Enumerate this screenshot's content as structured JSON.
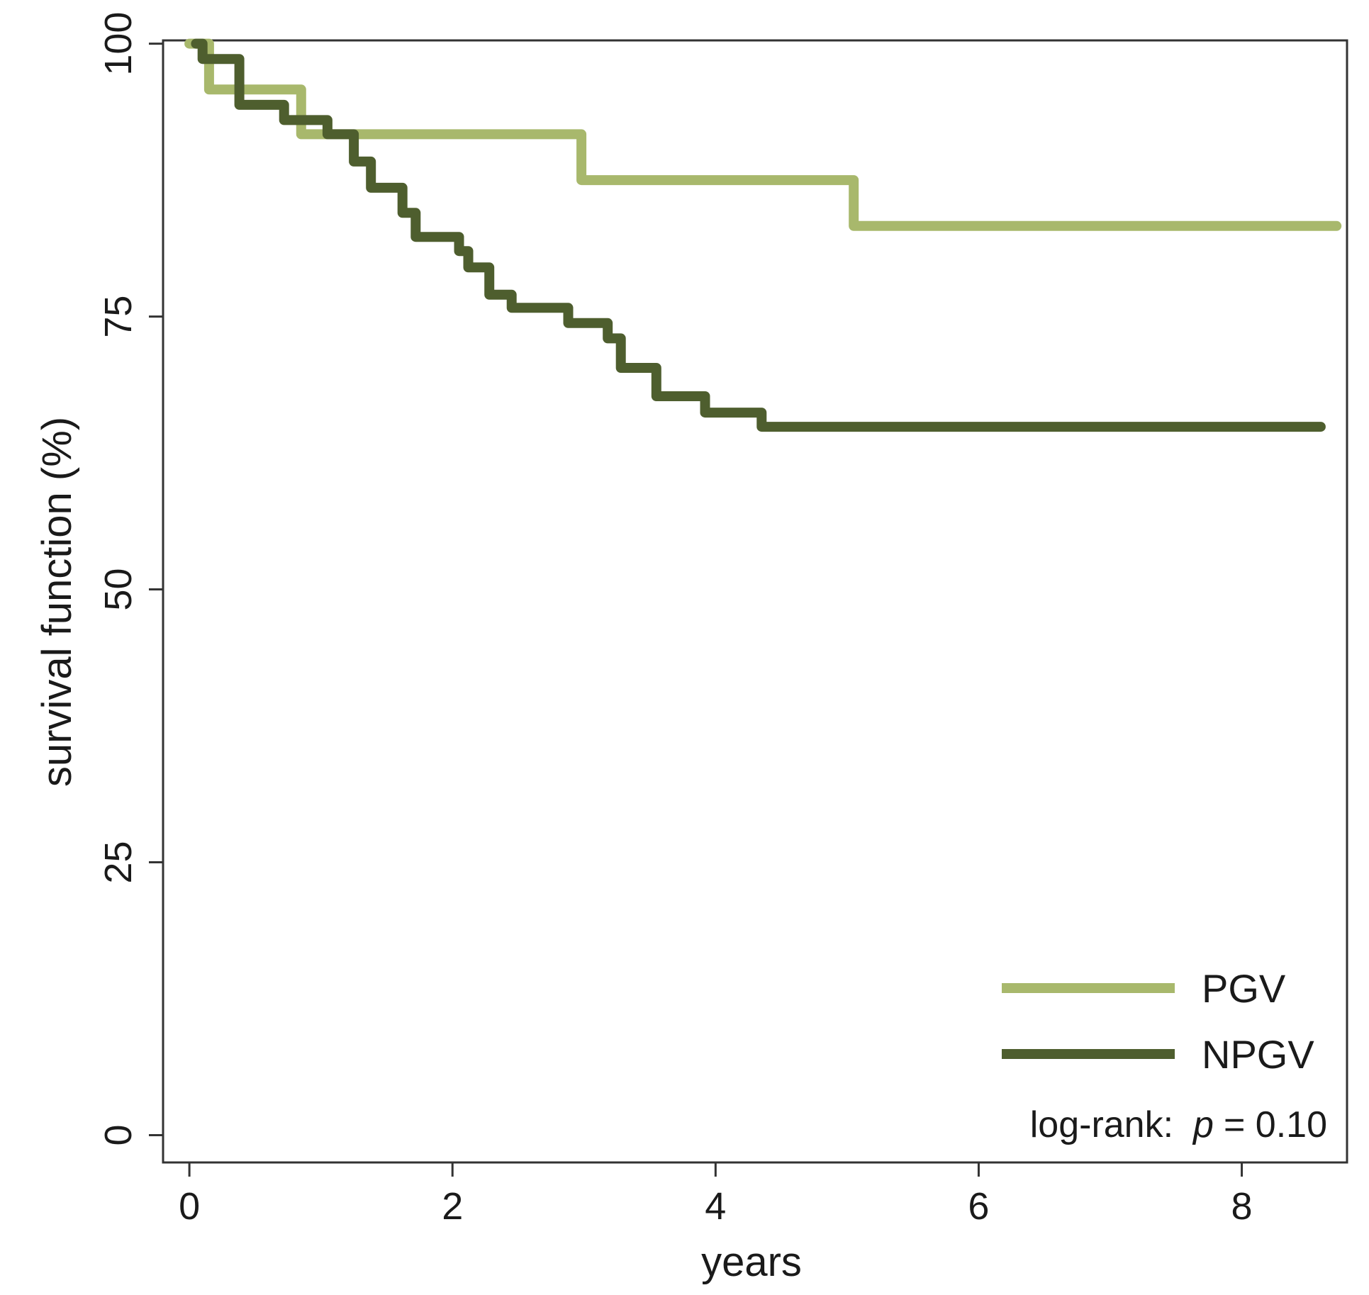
{
  "chart_data": {
    "type": "line",
    "subtype": "kaplan-meier-step",
    "title": "",
    "xlabel": "years",
    "ylabel": "survival function (%)",
    "xlim": [
      -0.2,
      8.8
    ],
    "ylim": [
      -2.5,
      100.3
    ],
    "xticks": [
      0,
      2,
      4,
      6,
      8
    ],
    "yticks": [
      0,
      25,
      50,
      75,
      100
    ],
    "xtick_labels": [
      "0",
      "2",
      "4",
      "6",
      "8"
    ],
    "ytick_labels": [
      "0",
      "25",
      "50",
      "75",
      "100"
    ],
    "grid": false,
    "legend_position": "bottom-right",
    "annotation": {
      "prefix": "log-rank:",
      "italic": "p",
      "suffix": "= 0.10"
    },
    "series": [
      {
        "name": "PGV",
        "color": "#a8b86c",
        "x": [
          0,
          0.15,
          0.15,
          0.85,
          0.85,
          2.98,
          2.98,
          5.05,
          5.05,
          8.72
        ],
        "y": [
          100,
          100,
          95.8,
          95.8,
          91.7,
          91.7,
          87.5,
          87.5,
          83.3,
          83.3
        ]
      },
      {
        "name": "NPGV",
        "color": "#4e5e2e",
        "x": [
          0.05,
          0.1,
          0.1,
          0.38,
          0.38,
          0.72,
          0.72,
          1.05,
          1.05,
          1.25,
          1.25,
          1.38,
          1.38,
          1.62,
          1.62,
          1.72,
          1.72,
          2.05,
          2.05,
          2.12,
          2.12,
          2.28,
          2.28,
          2.45,
          2.45,
          2.88,
          2.88,
          3.18,
          3.18,
          3.28,
          3.28,
          3.55,
          3.55,
          3.92,
          3.92,
          4.35,
          4.35,
          8.6
        ],
        "y": [
          100,
          100,
          98.6,
          98.6,
          94.4,
          94.4,
          93.0,
          93.0,
          91.7,
          91.7,
          89.2,
          89.2,
          86.8,
          86.8,
          84.5,
          84.5,
          82.3,
          82.3,
          81.0,
          81.0,
          79.5,
          79.5,
          77.0,
          77.0,
          75.8,
          75.8,
          74.4,
          74.4,
          73.0,
          73.0,
          70.3,
          70.3,
          67.7,
          67.7,
          66.2,
          66.2,
          64.9,
          64.9
        ]
      }
    ]
  }
}
